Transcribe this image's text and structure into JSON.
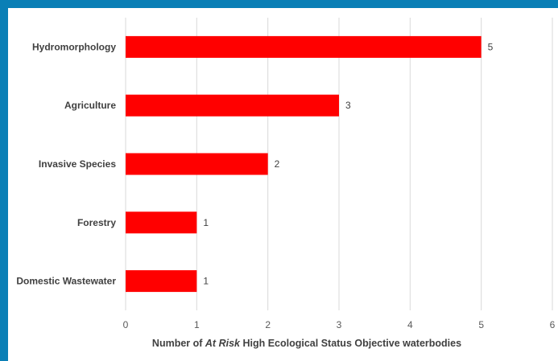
{
  "chart_data": {
    "type": "bar",
    "orientation": "horizontal",
    "categories": [
      "Hydromorphology",
      "Agriculture",
      "Invasive Species",
      "Forestry",
      "Domestic Wastewater"
    ],
    "values": [
      5,
      3,
      2,
      1,
      1
    ],
    "xlabel_parts": [
      {
        "text": "Number of ",
        "italic": false
      },
      {
        "text": "At Risk",
        "italic": true
      },
      {
        "text": " High Ecological Status Objective waterbodies",
        "italic": false
      }
    ],
    "xlim": [
      0,
      6
    ],
    "xticks": [
      "0",
      "1",
      "2",
      "3",
      "4",
      "5",
      "6"
    ],
    "grid": true,
    "data_labels": true,
    "bar_color": "#ff0000",
    "gridline_color": "#d9d9d9",
    "frame_color": "#0a7fb6"
  }
}
